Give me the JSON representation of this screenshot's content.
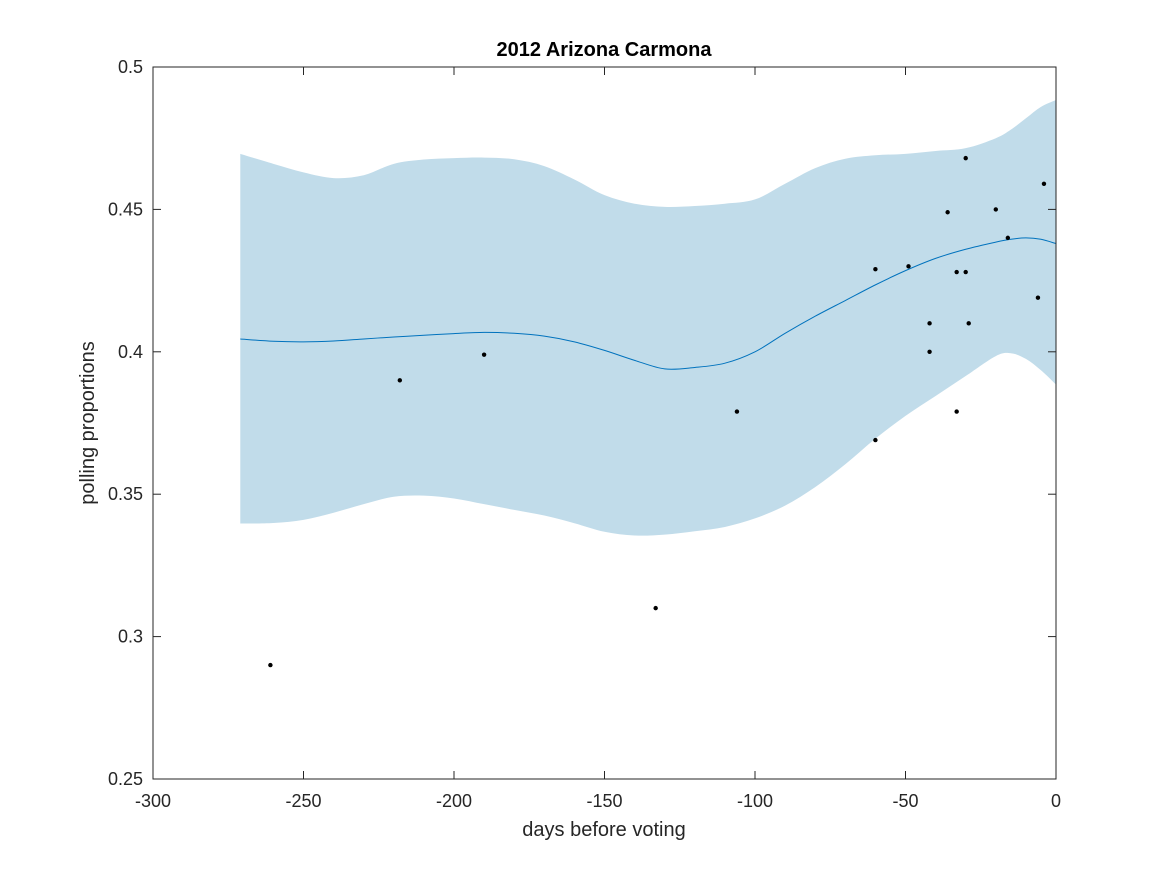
{
  "chart_data": {
    "type": "scatter",
    "title": "2012 Arizona Carmona",
    "xlabel": "days before voting",
    "ylabel": "polling proportions",
    "xlim": [
      -300,
      0
    ],
    "ylim": [
      0.25,
      0.5
    ],
    "xticks": [
      -300,
      -250,
      -200,
      -150,
      -100,
      -50,
      0
    ],
    "yticks": [
      0.25,
      0.3,
      0.35,
      0.4,
      0.45,
      0.5
    ],
    "xtick_labels": [
      "-300",
      "-250",
      "-200",
      "-150",
      "-100",
      "-50",
      "0"
    ],
    "ytick_labels": [
      "0.25",
      "0.3",
      "0.35",
      "0.4",
      "0.45",
      "0.5"
    ],
    "grid": false,
    "colors": {
      "band": "#c1dcea",
      "line": "#0072bd",
      "points": "#000000",
      "axes": "#262626"
    },
    "polls": {
      "x": [
        -261,
        -218,
        -190,
        -133,
        -106,
        -60,
        -60,
        -49,
        -42,
        -42,
        -36,
        -33,
        -33,
        -30,
        -30,
        -29,
        -20,
        -16,
        -6,
        -4
      ],
      "y": [
        0.29,
        0.39,
        0.399,
        0.31,
        0.379,
        0.429,
        0.369,
        0.43,
        0.41,
        0.4,
        0.449,
        0.428,
        0.379,
        0.428,
        0.468,
        0.41,
        0.45,
        0.44,
        0.419,
        0.459
      ]
    },
    "trend": {
      "x": [
        -271,
        -260,
        -250,
        -240,
        -230,
        -220,
        -210,
        -200,
        -190,
        -180,
        -170,
        -160,
        -150,
        -140,
        -130,
        -120,
        -110,
        -100,
        -90,
        -80,
        -70,
        -60,
        -50,
        -40,
        -30,
        -20,
        -15,
        -10,
        -5,
        0
      ],
      "mean": [
        0.4045,
        0.4037,
        0.4035,
        0.4038,
        0.4045,
        0.4052,
        0.4058,
        0.4064,
        0.4068,
        0.4065,
        0.4055,
        0.4035,
        0.4005,
        0.397,
        0.394,
        0.3945,
        0.396,
        0.4,
        0.4065,
        0.4125,
        0.418,
        0.4235,
        0.4285,
        0.4328,
        0.436,
        0.4385,
        0.4395,
        0.44,
        0.4395,
        0.438
      ],
      "upper": [
        0.4695,
        0.466,
        0.463,
        0.461,
        0.462,
        0.466,
        0.4675,
        0.468,
        0.4682,
        0.4676,
        0.4652,
        0.4605,
        0.455,
        0.452,
        0.4509,
        0.4512,
        0.452,
        0.4535,
        0.459,
        0.4645,
        0.4678,
        0.469,
        0.4695,
        0.4705,
        0.4715,
        0.475,
        0.478,
        0.482,
        0.486,
        0.4884
      ],
      "lower": [
        0.3397,
        0.3399,
        0.341,
        0.3435,
        0.3465,
        0.3491,
        0.3495,
        0.3485,
        0.3465,
        0.3445,
        0.3425,
        0.3398,
        0.3368,
        0.3355,
        0.3358,
        0.337,
        0.3385,
        0.3415,
        0.346,
        0.3525,
        0.3605,
        0.3695,
        0.3775,
        0.3845,
        0.3915,
        0.3985,
        0.3995,
        0.3975,
        0.3935,
        0.3885
      ]
    }
  }
}
